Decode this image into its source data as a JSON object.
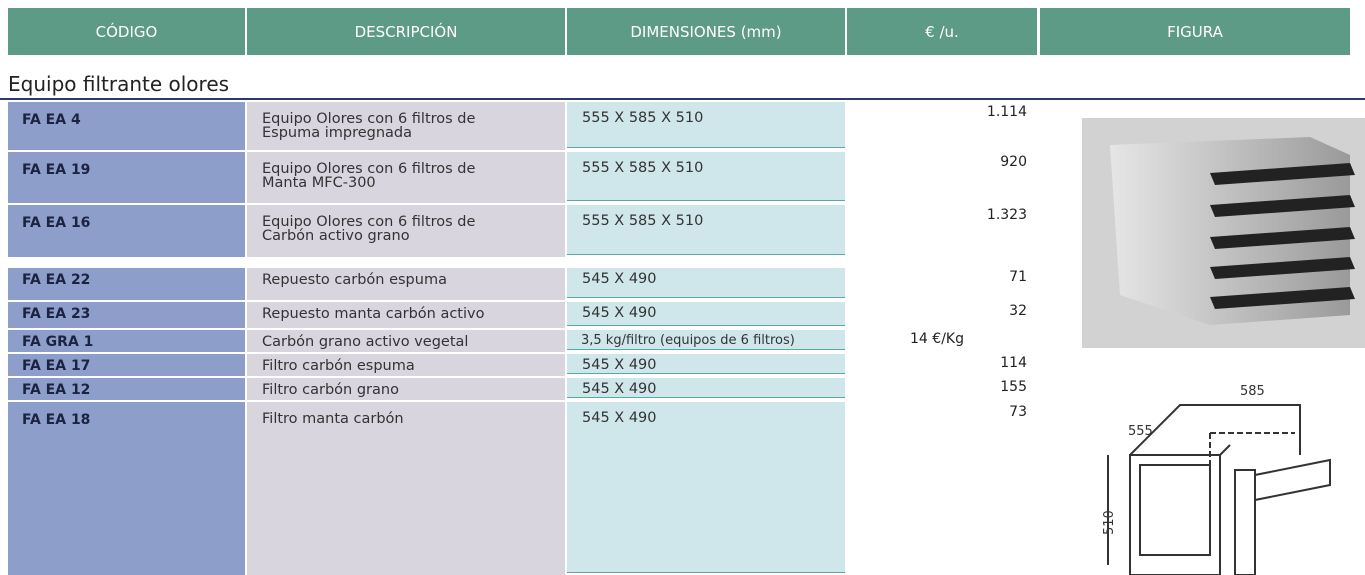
{
  "header": {
    "columns": [
      "CÓDIGO",
      "DESCRIPCIÓN",
      "DIMENSIONES (mm)",
      "€ /u.",
      "FIGURA"
    ]
  },
  "section_title": "Equipo filtrante olores",
  "table": {
    "rows": [
      [
        "FA EA 4",
        "Equipo Olores con 6 filtros de Espuma impregnada",
        "555 X 585 X 510",
        "1.114"
      ],
      [
        "FA EA 19",
        "Equipo Olores con 6 filtros de Manta MFC-300",
        "555 X 585 X 510",
        "920"
      ],
      [
        "FA EA 16",
        "Equipo Olores con 6 filtros de Carbón activo grano",
        "555 X 585 X 510",
        "1.323"
      ],
      [
        "FA EA 22",
        "Repuesto carbón espuma",
        "545 X 490",
        "71"
      ],
      [
        "FA EA 23",
        "Repuesto manta carbón activo",
        "545 X 490",
        "32"
      ],
      [
        "FA GRA 1",
        "Carbón grano activo vegetal",
        "3,5 kg/filtro (equipos de 6 filtros)",
        "14 €/Kg"
      ],
      [
        "FA EA 17",
        "Filtro carbón espuma",
        "545 X 490",
        "114"
      ],
      [
        "FA EA 12",
        "Filtro carbón grano",
        "545 X 490",
        "155"
      ],
      [
        "FA EA 18",
        "Filtro manta carbón",
        "545 X 490",
        "73"
      ]
    ]
  },
  "figure": {
    "dimension_labels": [
      "585",
      "555",
      "510"
    ]
  }
}
